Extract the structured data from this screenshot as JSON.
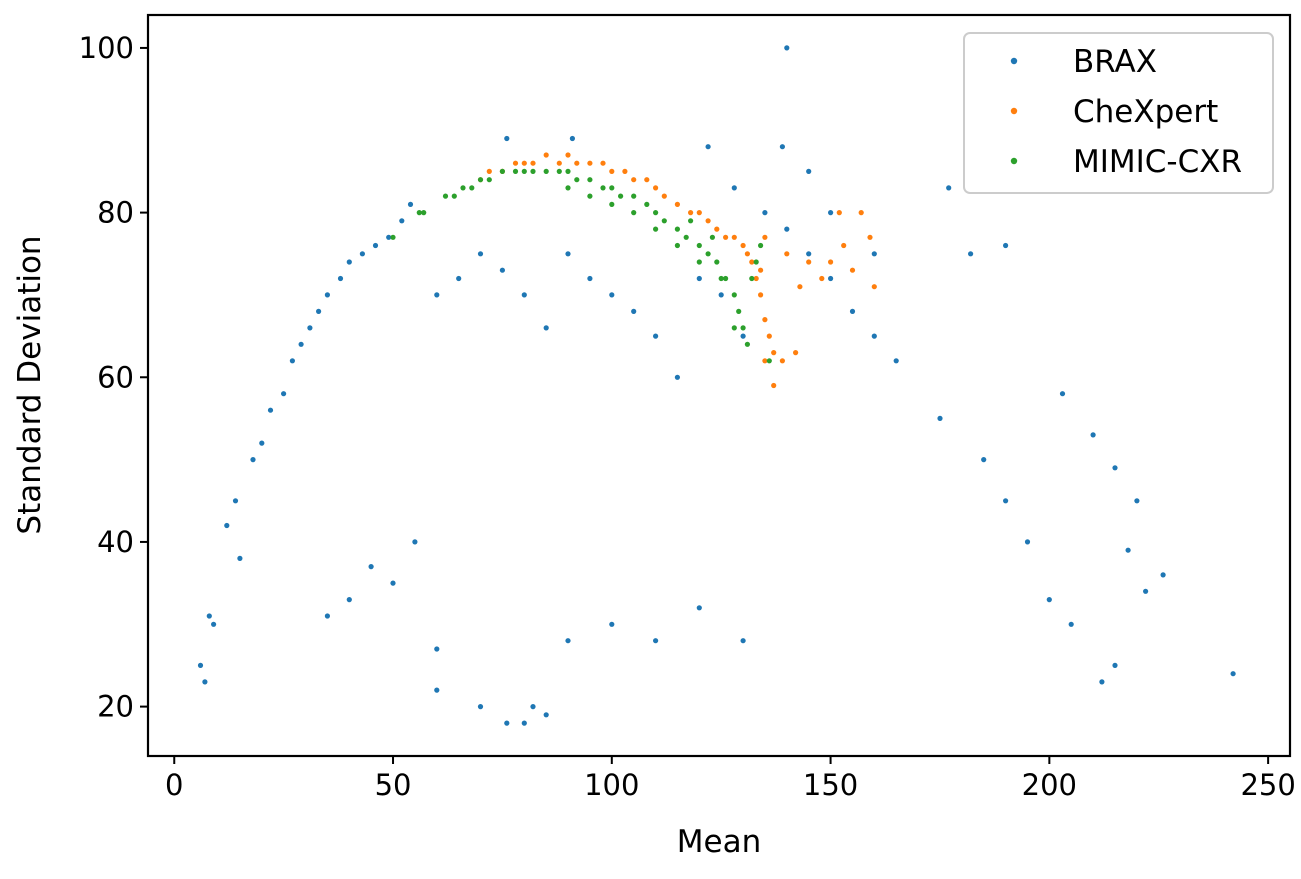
{
  "chart_data": {
    "type": "scatter",
    "title": "",
    "xlabel": "Mean",
    "ylabel": "Standard Deviation",
    "xlim": [
      -6,
      255
    ],
    "ylim": [
      14,
      104
    ],
    "xticks": [
      0,
      50,
      100,
      150,
      200,
      250
    ],
    "yticks": [
      20,
      40,
      60,
      80,
      100
    ],
    "grid": false,
    "legend_position": "top-right",
    "series": [
      {
        "name": "BRAX",
        "color": "#1f77b4",
        "points": [
          [
            6,
            25
          ],
          [
            7,
            23
          ],
          [
            8,
            31
          ],
          [
            9,
            30
          ],
          [
            12,
            42
          ],
          [
            14,
            45
          ],
          [
            15,
            38
          ],
          [
            18,
            50
          ],
          [
            20,
            52
          ],
          [
            22,
            56
          ],
          [
            25,
            58
          ],
          [
            27,
            62
          ],
          [
            29,
            64
          ],
          [
            31,
            66
          ],
          [
            33,
            68
          ],
          [
            35,
            70
          ],
          [
            38,
            72
          ],
          [
            40,
            74
          ],
          [
            43,
            75
          ],
          [
            46,
            76
          ],
          [
            49,
            77
          ],
          [
            52,
            79
          ],
          [
            54,
            81
          ],
          [
            35,
            31
          ],
          [
            40,
            33
          ],
          [
            45,
            37
          ],
          [
            50,
            35
          ],
          [
            55,
            40
          ],
          [
            60,
            22
          ],
          [
            60,
            27
          ],
          [
            70,
            20
          ],
          [
            76,
            18
          ],
          [
            80,
            18
          ],
          [
            85,
            19
          ],
          [
            82,
            20
          ],
          [
            90,
            28
          ],
          [
            100,
            30
          ],
          [
            110,
            28
          ],
          [
            120,
            32
          ],
          [
            130,
            28
          ],
          [
            140,
            100
          ],
          [
            139,
            88
          ],
          [
            145,
            85
          ],
          [
            76,
            89
          ],
          [
            91,
            89
          ],
          [
            122,
            88
          ],
          [
            128,
            83
          ],
          [
            150,
            80
          ],
          [
            160,
            75
          ],
          [
            177,
            83
          ],
          [
            182,
            75
          ],
          [
            190,
            76
          ],
          [
            203,
            58
          ],
          [
            210,
            53
          ],
          [
            215,
            49
          ],
          [
            220,
            45
          ],
          [
            226,
            36
          ],
          [
            242,
            24
          ],
          [
            218,
            39
          ],
          [
            222,
            34
          ],
          [
            212,
            23
          ],
          [
            215,
            25
          ],
          [
            205,
            30
          ],
          [
            200,
            33
          ],
          [
            195,
            40
          ],
          [
            190,
            45
          ],
          [
            185,
            50
          ],
          [
            175,
            55
          ],
          [
            165,
            62
          ],
          [
            160,
            65
          ],
          [
            155,
            68
          ],
          [
            150,
            72
          ],
          [
            145,
            75
          ],
          [
            140,
            78
          ],
          [
            135,
            80
          ],
          [
            130,
            65
          ],
          [
            125,
            70
          ],
          [
            120,
            72
          ],
          [
            115,
            60
          ],
          [
            110,
            65
          ],
          [
            105,
            68
          ],
          [
            100,
            70
          ],
          [
            95,
            72
          ],
          [
            90,
            75
          ],
          [
            85,
            66
          ],
          [
            80,
            70
          ],
          [
            75,
            73
          ],
          [
            70,
            75
          ],
          [
            65,
            72
          ],
          [
            60,
            70
          ]
        ]
      },
      {
        "name": "CheXpert",
        "color": "#ff7f0e",
        "points": [
          [
            70,
            84
          ],
          [
            72,
            85
          ],
          [
            75,
            85
          ],
          [
            78,
            86
          ],
          [
            80,
            86
          ],
          [
            82,
            86
          ],
          [
            85,
            87
          ],
          [
            88,
            86
          ],
          [
            90,
            87
          ],
          [
            92,
            86
          ],
          [
            95,
            86
          ],
          [
            98,
            86
          ],
          [
            100,
            85
          ],
          [
            103,
            85
          ],
          [
            105,
            84
          ],
          [
            108,
            84
          ],
          [
            110,
            83
          ],
          [
            112,
            82
          ],
          [
            115,
            81
          ],
          [
            118,
            80
          ],
          [
            120,
            80
          ],
          [
            122,
            79
          ],
          [
            124,
            78
          ],
          [
            126,
            77
          ],
          [
            128,
            77
          ],
          [
            130,
            76
          ],
          [
            131,
            75
          ],
          [
            132,
            74
          ],
          [
            133,
            72
          ],
          [
            134,
            70
          ],
          [
            135,
            77
          ],
          [
            135,
            67
          ],
          [
            136,
            65
          ],
          [
            137,
            63
          ],
          [
            137,
            59
          ],
          [
            135,
            62
          ],
          [
            139,
            62
          ],
          [
            142,
            63
          ],
          [
            134,
            73
          ],
          [
            140,
            75
          ],
          [
            145,
            74
          ],
          [
            148,
            72
          ],
          [
            150,
            74
          ],
          [
            152,
            80
          ],
          [
            155,
            73
          ],
          [
            157,
            80
          ],
          [
            159,
            77
          ],
          [
            160,
            71
          ],
          [
            143,
            71
          ],
          [
            153,
            76
          ]
        ]
      },
      {
        "name": "MIMIC-CXR",
        "color": "#2ca02c",
        "points": [
          [
            50,
            77
          ],
          [
            56,
            80
          ],
          [
            57,
            80
          ],
          [
            62,
            82
          ],
          [
            64,
            82
          ],
          [
            66,
            83
          ],
          [
            68,
            83
          ],
          [
            70,
            84
          ],
          [
            72,
            84
          ],
          [
            75,
            85
          ],
          [
            78,
            85
          ],
          [
            80,
            85
          ],
          [
            82,
            85
          ],
          [
            85,
            85
          ],
          [
            88,
            85
          ],
          [
            90,
            85
          ],
          [
            92,
            84
          ],
          [
            95,
            84
          ],
          [
            98,
            83
          ],
          [
            100,
            83
          ],
          [
            102,
            82
          ],
          [
            105,
            82
          ],
          [
            108,
            81
          ],
          [
            110,
            80
          ],
          [
            112,
            79
          ],
          [
            115,
            78
          ],
          [
            117,
            77
          ],
          [
            120,
            76
          ],
          [
            122,
            75
          ],
          [
            124,
            74
          ],
          [
            126,
            72
          ],
          [
            128,
            70
          ],
          [
            129,
            68
          ],
          [
            130,
            66
          ],
          [
            131,
            64
          ],
          [
            128,
            66
          ],
          [
            132,
            72
          ],
          [
            133,
            74
          ],
          [
            134,
            76
          ],
          [
            136,
            62
          ],
          [
            90,
            83
          ],
          [
            95,
            82
          ],
          [
            100,
            81
          ],
          [
            105,
            80
          ],
          [
            110,
            78
          ],
          [
            115,
            76
          ],
          [
            120,
            74
          ],
          [
            125,
            72
          ],
          [
            118,
            79
          ],
          [
            123,
            77
          ]
        ]
      }
    ]
  }
}
